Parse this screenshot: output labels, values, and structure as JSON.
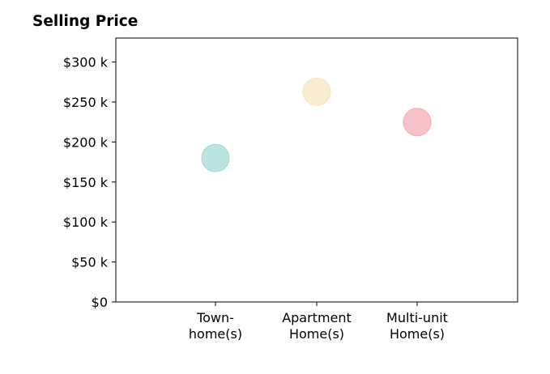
{
  "chart_data": {
    "type": "scatter",
    "title": "Selling Price",
    "xlabel": "",
    "ylabel": "",
    "categories": [
      [
        "Town-",
        "home(s)"
      ],
      [
        "Apartment",
        "Home(s)"
      ],
      [
        "Multi-unit",
        "Home(s)"
      ]
    ],
    "values": [
      180,
      263,
      225
    ],
    "colors": [
      "#9fd8d2",
      "#f5e4bd",
      "#f5a9b0"
    ],
    "ylim": [
      0,
      330
    ],
    "yticks": [
      0,
      50,
      100,
      150,
      200,
      250,
      300
    ],
    "ytick_labels": [
      "$0",
      "$50 k",
      "$100 k",
      "$150 k",
      "$200 k",
      "$250 k",
      "$300 k"
    ],
    "grid": false,
    "legend": "none"
  }
}
